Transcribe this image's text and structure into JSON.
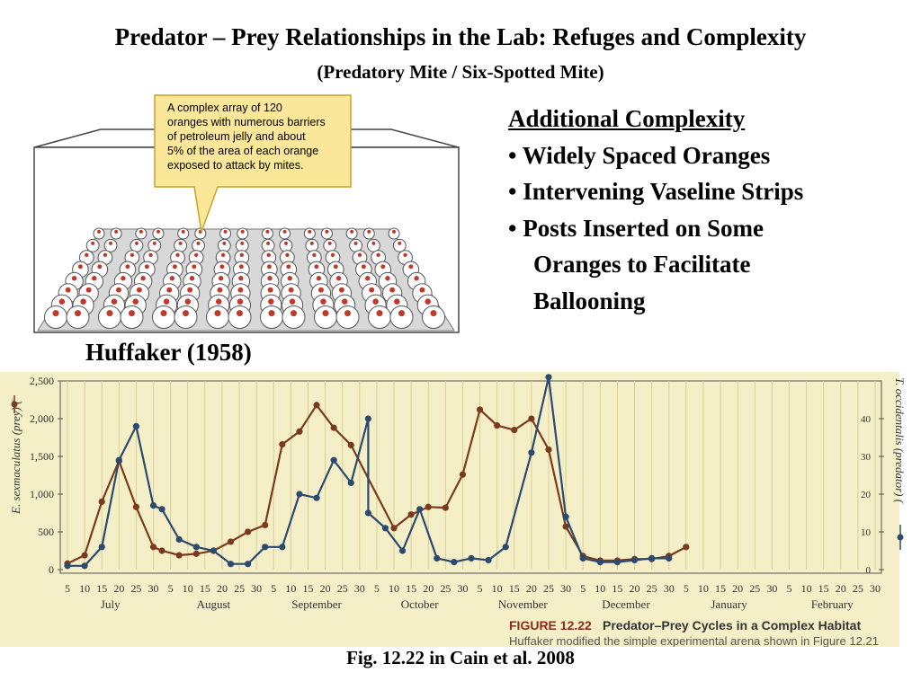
{
  "slide": {
    "title": "Predator – Prey Relationships in the Lab: Refuges and Complexity",
    "subtitle": "(Predatory Mite / Six-Spotted Mite)",
    "complexity_heading": "Additional Complexity",
    "bullets": [
      "• Widely Spaced Oranges",
      "• Intervening Vaseline Strips",
      "• Posts Inserted on Some",
      "Oranges to Facilitate",
      "Ballooning"
    ],
    "citation": "Huffaker (1958)",
    "caption": "Fig. 12.22 in Cain et al. 2008"
  },
  "diagram": {
    "callout_lines": [
      "A complex array of 120",
      "oranges with numerous barriers",
      "of petroleum jelly and about",
      "5% of the area of each orange",
      "exposed to attack by mites."
    ],
    "orange_rows": 8,
    "orange_cols": 15,
    "colors": {
      "callout_fill": "#fbe79a",
      "callout_border": "#c9a227",
      "dot": "#c0392b"
    }
  },
  "chart_data": {
    "type": "line",
    "figure_label": "FIGURE 12.22",
    "figure_title": "Predator–Prey Cycles in a Complex Habitat",
    "figure_text": "Huffaker modified the simple experimental arena shown in Figure 12.21",
    "ylabel_left": "E. sexmaculatus (prey) (",
    "ylabel_right": "T. occidentalis (predator) (",
    "ylim_left": [
      0,
      2500
    ],
    "ylim_right": [
      0,
      50
    ],
    "yticks_left": [
      "0",
      "500",
      "1,000",
      "1,500",
      "2,000",
      "2,500"
    ],
    "yticks_right": [
      "0",
      "10",
      "20",
      "30",
      "40"
    ],
    "x_day_labels": [
      "5",
      "10",
      "15",
      "20",
      "25",
      "30",
      "5",
      "10",
      "15",
      "20",
      "25",
      "30",
      "5",
      "10",
      "15",
      "20",
      "25",
      "30",
      "5",
      "10",
      "15",
      "20",
      "25",
      "30",
      "5",
      "10",
      "15",
      "20",
      "25",
      "30",
      "5",
      "10",
      "15",
      "20",
      "25",
      "30",
      "5",
      "10",
      "15",
      "20",
      "25",
      "30",
      "5",
      "10",
      "15",
      "20",
      "25",
      "30"
    ],
    "months": [
      "July",
      "August",
      "September",
      "October",
      "November",
      "December",
      "January",
      "February"
    ],
    "x_index_range": [
      0,
      47
    ],
    "series": [
      {
        "name": "E. sexmaculatus (prey)",
        "axis": "left",
        "color": "#7b3a1e",
        "points": [
          [
            0,
            80
          ],
          [
            1,
            190
          ],
          [
            2,
            900
          ],
          [
            3,
            1440
          ],
          [
            4,
            830
          ],
          [
            5,
            300
          ],
          [
            5.5,
            250
          ],
          [
            6.5,
            190
          ],
          [
            7.5,
            210
          ],
          [
            8.5,
            250
          ],
          [
            9.5,
            370
          ],
          [
            10.5,
            500
          ],
          [
            11.5,
            590
          ],
          [
            12.5,
            1660
          ],
          [
            13.5,
            1830
          ],
          [
            14.5,
            2180
          ],
          [
            15.5,
            1880
          ],
          [
            16.5,
            1650
          ],
          [
            19,
            550
          ],
          [
            20,
            730
          ],
          [
            21,
            830
          ],
          [
            22,
            820
          ],
          [
            23,
            1260
          ],
          [
            24,
            2120
          ],
          [
            25,
            1910
          ],
          [
            26,
            1850
          ],
          [
            27,
            2000
          ],
          [
            28,
            1590
          ],
          [
            29,
            570
          ],
          [
            30,
            180
          ],
          [
            31,
            120
          ],
          [
            32,
            120
          ],
          [
            33,
            140
          ],
          [
            34,
            140
          ],
          [
            35,
            180
          ],
          [
            36,
            300
          ]
        ]
      },
      {
        "name": "T. occidentalis (predator)",
        "axis": "right",
        "color": "#2b4a6f",
        "points": [
          [
            0,
            1
          ],
          [
            1,
            1
          ],
          [
            2,
            6
          ],
          [
            3,
            29
          ],
          [
            4,
            38
          ],
          [
            5,
            17
          ],
          [
            5.5,
            16
          ],
          [
            6.5,
            8
          ],
          [
            7.5,
            6
          ],
          [
            8.5,
            5
          ],
          [
            9.5,
            1.5
          ],
          [
            10.5,
            1.5
          ],
          [
            11.5,
            6
          ],
          [
            12.5,
            6
          ],
          [
            13.5,
            20
          ],
          [
            14.5,
            19
          ],
          [
            15.5,
            29
          ],
          [
            16.5,
            23
          ],
          [
            17.5,
            40
          ],
          [
            17.5,
            15
          ],
          [
            18.5,
            11
          ],
          [
            19.5,
            5
          ],
          [
            20.5,
            16
          ],
          [
            21.5,
            3
          ],
          [
            22.5,
            2
          ],
          [
            23.5,
            3
          ],
          [
            24.5,
            2.5
          ],
          [
            25.5,
            6
          ],
          [
            27,
            31
          ],
          [
            28,
            51
          ],
          [
            29,
            14
          ],
          [
            30,
            3
          ],
          [
            31,
            2
          ],
          [
            32,
            2
          ],
          [
            33,
            2.5
          ],
          [
            34,
            3
          ],
          [
            35,
            3
          ]
        ]
      }
    ]
  }
}
